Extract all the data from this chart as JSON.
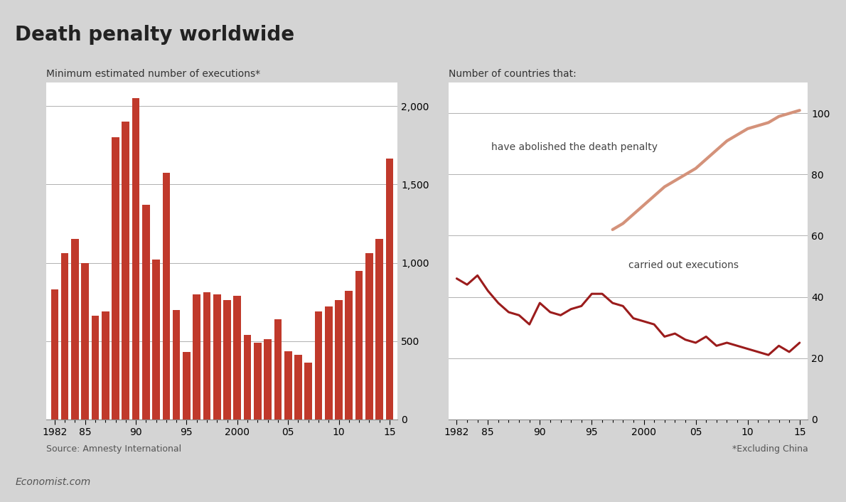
{
  "title": "Death penalty worldwide",
  "title_color": "#222222",
  "background_color": "#d4d4d4",
  "plot_bg_color": "#ffffff",
  "red_bar_color": "#c0392b",
  "bar_years": [
    1982,
    1983,
    1984,
    1985,
    1986,
    1987,
    1988,
    1989,
    1990,
    1991,
    1992,
    1993,
    1994,
    1995,
    1996,
    1997,
    1998,
    1999,
    2000,
    2001,
    2002,
    2003,
    2004,
    2005,
    2006,
    2007,
    2008,
    2009,
    2010,
    2011,
    2012,
    2013,
    2014,
    2015
  ],
  "bar_values": [
    830,
    1060,
    1150,
    1000,
    660,
    690,
    1800,
    1900,
    2050,
    1370,
    1020,
    1575,
    700,
    430,
    800,
    810,
    800,
    760,
    790,
    540,
    490,
    510,
    640,
    435,
    410,
    360,
    690,
    720,
    760,
    820,
    950,
    1060,
    1150,
    1665
  ],
  "left_subtitle": "Minimum estimated number of executions*",
  "left_ylabel_vals": [
    0,
    500,
    1000,
    1500,
    2000
  ],
  "left_ylim": [
    0,
    2150
  ],
  "left_source": "Source: Amnesty International",
  "right_title": "Number of countries that:",
  "abolished_years": [
    1997,
    1998,
    1999,
    2000,
    2001,
    2002,
    2003,
    2004,
    2005,
    2006,
    2007,
    2008,
    2009,
    2010,
    2011,
    2012,
    2013,
    2014,
    2015
  ],
  "abolished_values": [
    62,
    64,
    67,
    70,
    73,
    76,
    78,
    80,
    82,
    85,
    88,
    91,
    93,
    95,
    96,
    97,
    99,
    100,
    101
  ],
  "abolished_color": "#d4927a",
  "abolished_label": "have abolished the death penalty",
  "executions_years": [
    1982,
    1983,
    1984,
    1985,
    1986,
    1987,
    1988,
    1989,
    1990,
    1991,
    1992,
    1993,
    1994,
    1995,
    1996,
    1997,
    1998,
    1999,
    2000,
    2001,
    2002,
    2003,
    2004,
    2005,
    2006,
    2007,
    2008,
    2009,
    2010,
    2011,
    2012,
    2013,
    2014,
    2015
  ],
  "executions_values": [
    46,
    44,
    47,
    42,
    38,
    35,
    34,
    31,
    38,
    35,
    34,
    36,
    37,
    41,
    41,
    38,
    37,
    33,
    32,
    31,
    27,
    28,
    26,
    25,
    27,
    24,
    25,
    24,
    23,
    22,
    21,
    24,
    22,
    25
  ],
  "executions_color": "#9b1c1c",
  "executions_label": "carried out executions",
  "right_ylim": [
    0,
    110
  ],
  "right_ylabel_vals": [
    0,
    20,
    40,
    60,
    80,
    100
  ],
  "footnote": "*Excluding China",
  "economist_label": "Economist.com",
  "x_tick_positions": [
    1982,
    1985,
    1990,
    1995,
    2000,
    2005,
    2010,
    2015
  ],
  "x_tick_labels": [
    "1982",
    "85",
    "90",
    "95",
    "2000",
    "05",
    "10",
    "15"
  ]
}
